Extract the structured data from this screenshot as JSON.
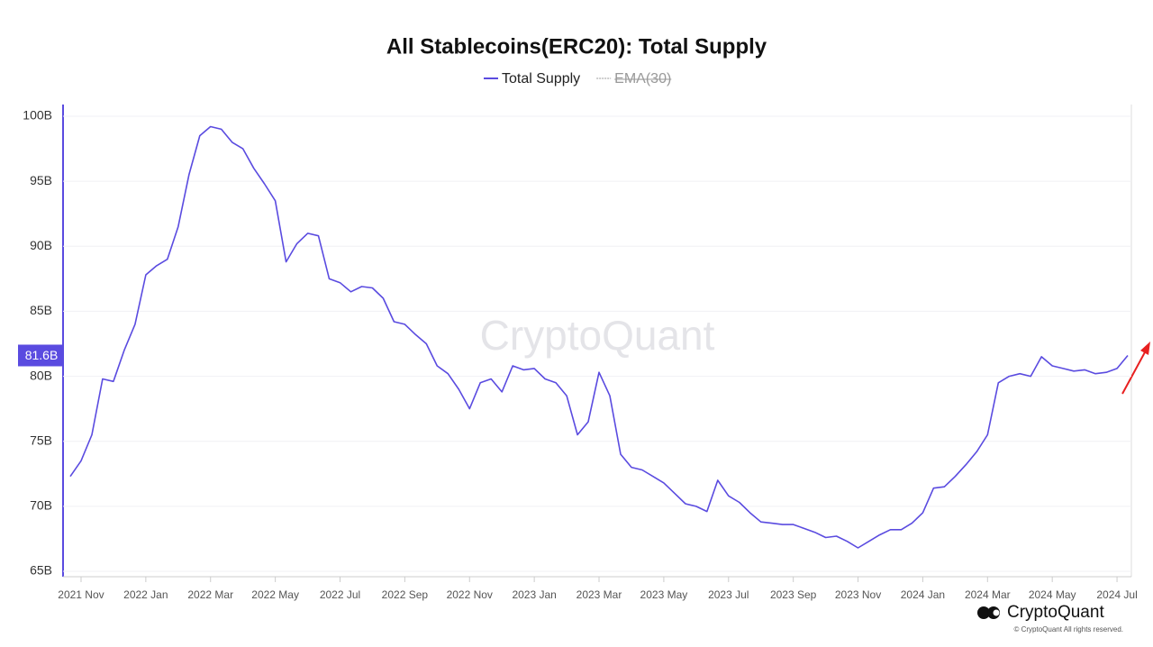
{
  "chart_data": {
    "type": "line",
    "title": "All Stablecoins(ERC20): Total Supply",
    "categories": [
      null,
      "2021 Nov",
      null,
      null,
      null,
      null,
      null,
      "2022 Jan",
      null,
      null,
      null,
      null,
      null,
      "2022 Mar",
      null,
      null,
      null,
      null,
      null,
      "2022 May",
      null,
      null,
      null,
      null,
      null,
      "2022 Jul",
      null,
      null,
      null,
      null,
      null,
      "2022 Sep",
      null,
      null,
      null,
      null,
      null,
      "2022 Nov",
      null,
      null,
      null,
      null,
      null,
      "2023 Jan",
      null,
      null,
      null,
      null,
      null,
      "2023 Mar",
      null,
      null,
      null,
      null,
      null,
      "2023 May",
      null,
      null,
      null,
      null,
      null,
      "2023 Jul",
      null,
      null,
      null,
      null,
      null,
      "2023 Sep",
      null,
      null,
      null,
      null,
      null,
      "2023 Nov",
      null,
      null,
      null,
      null,
      null,
      "2024 Jan",
      null,
      null,
      null,
      null,
      null,
      "2024 Mar",
      null,
      null,
      null,
      null,
      null,
      "2024 May",
      null,
      null,
      null,
      null,
      null,
      "2024 Jul",
      null
    ],
    "series": [
      {
        "name": "Total Supply",
        "color": "#5a4be0",
        "values": [
          72.3,
          73.5,
          75.5,
          79.8,
          79.6,
          82,
          84,
          87.8,
          88.5,
          89,
          91.5,
          95.5,
          98.5,
          99.2,
          99,
          98,
          97.5,
          96,
          94.8,
          93.5,
          88.8,
          90.2,
          91,
          90.8,
          87.5,
          87.2,
          86.5,
          86.9,
          86.8,
          86,
          84.2,
          84,
          83.2,
          82.5,
          80.8,
          80.2,
          79,
          77.5,
          79.5,
          79.8,
          78.8,
          80.8,
          80.5,
          80.6,
          79.8,
          79.5,
          78.5,
          75.5,
          76.5,
          80.3,
          78.5,
          74,
          73,
          72.8,
          72.3,
          71.8,
          71,
          70.2,
          70,
          69.6,
          72,
          70.8,
          70.3,
          69.5,
          68.8,
          68.7,
          68.6,
          68.6,
          68.3,
          68,
          67.6,
          67.7,
          67.3,
          66.8,
          67.3,
          67.8,
          68.2,
          68.2,
          68.7,
          69.5,
          71.4,
          71.5,
          72.3,
          73.2,
          74.2,
          75.5,
          79.5,
          80,
          80.2,
          80,
          81.5,
          80.8,
          80.6,
          80.4,
          80.5,
          80.2,
          80.3,
          80.6,
          81.6
        ]
      }
    ],
    "hidden_series": [
      {
        "name": "EMA(30)",
        "color": "#999999"
      }
    ],
    "current_label": "81.6B",
    "ylim": [
      65,
      100
    ],
    "yticks": [
      {
        "value": 65,
        "label": "65B"
      },
      {
        "value": 70,
        "label": "70B"
      },
      {
        "value": 75,
        "label": "75B"
      },
      {
        "value": 80,
        "label": "80B"
      },
      {
        "value": 85,
        "label": "85B"
      },
      {
        "value": 90,
        "label": "90B"
      },
      {
        "value": 95,
        "label": "95B"
      },
      {
        "value": 100,
        "label": "100B"
      }
    ],
    "grid": true,
    "watermark": "CryptoQuant",
    "brand": "CryptoQuant",
    "copyright": "© CryptoQuant All rights reserved."
  }
}
